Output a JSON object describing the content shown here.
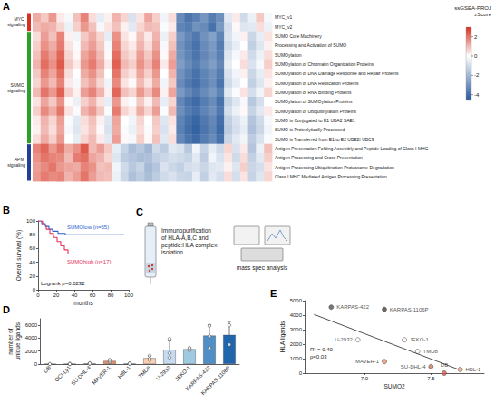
{
  "chart_data": [
    {
      "panel": "A",
      "type": "heatmap",
      "rows": [
        "MYC_v1",
        "MYC_v2",
        "SUMO Core Machinery",
        "Processing and Activation of SUMO",
        "SUMOylation",
        "SUMOylation of Chromatin Organization Proteins",
        "SUMOylation of DNA Damage Response and Repair Proteins",
        "SUMOylation of DNA Replication Proteins",
        "SUMOylation of RNA Binding Proteins",
        "SUMOylation of SUMOylation Proteins",
        "SUMOylation of Ubiquitinylation Proteins",
        "SUMO is Conjugated to E1 UBA2 SAE1",
        "SUMO is Proteolytically Processed",
        "SUMO is Transferred from E1 to E2 UBE2I UBC9",
        "Antigen Presentation Folding Assembly and Peptide Loading of Class I MHC",
        "Antigen Processing and Cross Presentation",
        "Antigen Processing Ubiquitination Proteasome Degradation",
        "Class I MHC Mediated Antigen Processing Presentation"
      ],
      "groups": [
        {
          "label": "MYC signaling",
          "color": "#d7301f",
          "rows": 2
        },
        {
          "label": "SUMO signaling",
          "color": "#2ca02c",
          "rows": 12
        },
        {
          "label": "APM signaling",
          "color": "#1f3f99",
          "rows": 4
        }
      ],
      "cells": [
        [
          1.2,
          0.8,
          1.5,
          0.3,
          -0.2,
          0.9,
          1.8,
          0.5,
          -0.5,
          0.2,
          1.1,
          0.6,
          -0.8,
          0.4,
          1.3,
          0.7,
          -0.3,
          0.5,
          -3.2,
          -3.8,
          -3.5,
          -2.9,
          -3.6,
          -3.1,
          -0.6,
          0.3,
          -1.0,
          -0.4,
          0.8,
          -0.2
        ],
        [
          1.0,
          1.2,
          1.1,
          0.6,
          -0.4,
          0.7,
          1.5,
          0.9,
          -0.2,
          0.4,
          0.9,
          0.2,
          -0.6,
          0.6,
          1.0,
          0.9,
          -0.1,
          0.3,
          -3.4,
          -3.6,
          -3.0,
          -3.2,
          -3.9,
          -2.8,
          -0.9,
          0.1,
          -0.7,
          -0.6,
          0.5,
          -0.4
        ],
        [
          0.5,
          1.4,
          0.9,
          1.8,
          0.2,
          -0.3,
          0.8,
          1.2,
          0.6,
          -0.5,
          1.6,
          0.4,
          0.1,
          0.9,
          0.3,
          1.1,
          -0.4,
          0.7,
          -2.8,
          -3.3,
          -3.7,
          -3.0,
          -2.6,
          -3.4,
          -0.8,
          -0.3,
          0.2,
          -1.1,
          -0.5,
          0.4
        ],
        [
          0.7,
          1.6,
          1.2,
          1.9,
          0.4,
          -0.1,
          1.0,
          1.4,
          0.8,
          -0.2,
          1.8,
          0.6,
          0.3,
          1.1,
          0.5,
          1.3,
          -0.2,
          0.9,
          -3.0,
          -3.5,
          -3.9,
          -3.2,
          -2.8,
          -3.6,
          -1.0,
          -0.5,
          0.0,
          -1.3,
          -0.7,
          0.2
        ],
        [
          0.9,
          1.9,
          1.4,
          2.2,
          0.6,
          0.1,
          1.3,
          1.7,
          1.0,
          0.1,
          2.1,
          0.8,
          0.5,
          1.4,
          0.8,
          1.6,
          0.1,
          1.2,
          -2.9,
          -3.4,
          -3.8,
          -3.3,
          -2.9,
          -3.5,
          -0.7,
          -0.2,
          0.3,
          -1.0,
          -0.4,
          0.5
        ],
        [
          1.1,
          2.1,
          1.6,
          2.4,
          0.8,
          0.3,
          1.5,
          1.9,
          1.2,
          0.3,
          2.3,
          1.0,
          0.7,
          1.6,
          1.0,
          1.8,
          0.3,
          1.4,
          -2.7,
          -3.2,
          -3.6,
          -3.1,
          -2.7,
          -3.3,
          -0.5,
          0.0,
          0.5,
          -0.8,
          -0.2,
          0.7
        ],
        [
          0.8,
          1.8,
          1.3,
          2.1,
          0.5,
          0.0,
          1.2,
          1.6,
          0.9,
          0.0,
          2.0,
          0.7,
          0.4,
          1.3,
          0.7,
          1.5,
          0.0,
          1.1,
          -3.0,
          -3.5,
          -3.9,
          -3.4,
          -3.0,
          -3.6,
          -0.8,
          -0.3,
          0.2,
          -1.1,
          -0.5,
          0.4
        ],
        [
          0.6,
          1.5,
          1.0,
          1.8,
          0.3,
          -0.2,
          0.9,
          1.3,
          0.6,
          -0.3,
          1.7,
          0.4,
          0.1,
          1.0,
          0.4,
          1.2,
          -0.3,
          0.8,
          -3.2,
          -3.7,
          -4.0,
          -3.5,
          -3.1,
          -3.8,
          -1.0,
          -0.5,
          0.0,
          -1.3,
          -0.7,
          0.2
        ],
        [
          1.0,
          2.0,
          1.5,
          2.3,
          0.7,
          0.2,
          1.4,
          1.8,
          1.1,
          0.2,
          2.2,
          0.9,
          0.6,
          1.5,
          0.9,
          1.7,
          0.2,
          1.3,
          -2.8,
          -3.3,
          -3.7,
          -3.2,
          -2.8,
          -3.4,
          -0.6,
          -0.1,
          0.4,
          -0.9,
          -0.3,
          0.6
        ],
        [
          0.4,
          1.3,
          0.8,
          1.6,
          0.1,
          -0.4,
          0.7,
          1.1,
          0.4,
          -0.5,
          1.5,
          0.2,
          -0.1,
          0.8,
          0.2,
          1.0,
          -0.5,
          0.6,
          -3.3,
          -3.8,
          -4.1,
          -3.6,
          -3.2,
          -3.9,
          -1.2,
          -0.7,
          -0.2,
          -1.5,
          -0.9,
          0.0
        ],
        [
          0.7,
          1.7,
          1.2,
          2.0,
          0.4,
          -0.1,
          1.1,
          1.5,
          0.8,
          -0.1,
          1.9,
          0.6,
          0.3,
          1.2,
          0.6,
          1.4,
          -0.1,
          1.0,
          -3.1,
          -3.6,
          -3.9,
          -3.4,
          -3.0,
          -3.7,
          -0.9,
          -0.4,
          0.1,
          -1.2,
          -0.6,
          0.3
        ],
        [
          0.3,
          1.1,
          0.6,
          1.4,
          -0.1,
          -0.6,
          0.5,
          0.9,
          0.2,
          -0.7,
          1.3,
          0.0,
          -0.3,
          0.6,
          0.0,
          0.8,
          -0.7,
          0.4,
          -3.4,
          -3.9,
          -4.2,
          -3.7,
          -3.3,
          -4.0,
          -1.3,
          -0.8,
          -0.4,
          -1.6,
          -1.0,
          -0.2
        ],
        [
          0.2,
          1.0,
          0.5,
          1.3,
          -0.2,
          -0.7,
          0.4,
          0.8,
          0.1,
          -0.8,
          1.2,
          -0.1,
          -0.4,
          0.5,
          -0.1,
          0.7,
          -0.8,
          0.3,
          -3.5,
          -4.0,
          -4.3,
          -3.8,
          -3.4,
          -4.1,
          -1.4,
          -0.9,
          -0.5,
          -1.7,
          -1.1,
          -0.3
        ],
        [
          0.5,
          1.2,
          0.7,
          1.5,
          0.0,
          -0.5,
          0.6,
          1.0,
          0.3,
          -0.6,
          1.4,
          0.1,
          -0.2,
          0.7,
          0.1,
          0.9,
          -0.6,
          0.5,
          -3.3,
          -3.8,
          -4.1,
          -3.6,
          -3.2,
          -3.9,
          -1.1,
          -0.6,
          -0.3,
          -1.4,
          -0.8,
          -0.1
        ],
        [
          1.8,
          2.2,
          1.5,
          2.0,
          1.2,
          1.6,
          2.4,
          1.0,
          1.4,
          0.8,
          -0.5,
          -1.2,
          -1.8,
          -1.5,
          -2.0,
          -1.0,
          -1.4,
          -0.6,
          -0.8,
          -1.5,
          -0.3,
          -1.2,
          -0.5,
          -1.0,
          0.6,
          -0.8,
          0.3,
          -1.6,
          -0.4,
          0.9
        ],
        [
          1.6,
          2.0,
          1.8,
          1.7,
          1.0,
          1.9,
          2.1,
          1.3,
          1.1,
          0.6,
          -0.7,
          -1.4,
          -1.6,
          -1.8,
          -1.7,
          -1.3,
          -1.1,
          -0.9,
          -1.0,
          -1.2,
          -0.6,
          -1.4,
          -0.3,
          -0.8,
          0.4,
          -1.0,
          0.5,
          -1.3,
          -0.6,
          0.7
        ],
        [
          1.4,
          1.7,
          2.0,
          1.5,
          1.3,
          1.2,
          1.8,
          1.6,
          0.9,
          1.0,
          -0.3,
          -1.0,
          -1.5,
          -1.2,
          -1.9,
          -1.6,
          -0.8,
          -1.1,
          -1.3,
          -0.9,
          -0.8,
          -1.1,
          -0.7,
          -0.6,
          0.2,
          -0.7,
          0.7,
          -1.1,
          -0.9,
          0.4
        ],
        [
          1.5,
          1.9,
          1.7,
          1.8,
          1.1,
          1.4,
          2.0,
          1.4,
          1.0,
          0.9,
          -0.4,
          -1.1,
          -1.7,
          -1.4,
          -1.8,
          -1.4,
          -1.0,
          -0.8,
          -1.1,
          -1.2,
          -0.5,
          -1.3,
          -0.6,
          -0.9,
          0.5,
          -0.9,
          0.4,
          -1.2,
          -0.7,
          0.6
        ]
      ],
      "colorbar": {
        "title": "ssGSEA-PROJ zScore",
        "range": [
          -4.5,
          3
        ],
        "ticks": [
          2,
          0,
          -2,
          -4
        ],
        "colors": [
          "#2b5c9e",
          "#ffffff",
          "#d7301f"
        ]
      }
    },
    {
      "panel": "B",
      "type": "line",
      "line_style": "step",
      "xlabel": "months",
      "ylabel": "Overall survival (%)",
      "xlim": [
        0,
        100
      ],
      "xticks": [
        0,
        20,
        40,
        60,
        80,
        100
      ],
      "ylim": [
        0,
        100
      ],
      "yticks": [
        0,
        20,
        40,
        60,
        80,
        100
      ],
      "annotation": "Logrank p=0.0232",
      "series": [
        {
          "name": "SUMOlow (n=55)",
          "color": "#2f5fd0",
          "x": [
            0,
            4,
            8,
            12,
            16,
            22,
            30,
            95
          ],
          "values": [
            100,
            96,
            92,
            88,
            85,
            82,
            80,
            80
          ]
        },
        {
          "name": "SUMOhigh (n=17)",
          "color": "#e8335a",
          "x": [
            0,
            5,
            9,
            13,
            17,
            21,
            25,
            29,
            33,
            90
          ],
          "values": [
            100,
            94,
            88,
            82,
            76,
            70,
            64,
            58,
            52,
            52
          ]
        }
      ]
    },
    {
      "panel": "D",
      "type": "bar",
      "ylabel": "number of unique ligands",
      "categories": [
        "DB",
        "OCI-Ly1",
        "SU-DHL-4",
        "MAVER-1",
        "HBL-1",
        "TMD8",
        "U-2932",
        "JEKO-1",
        "KARPAS-422",
        "KARPAS-1106P"
      ],
      "values": [
        0,
        10,
        80,
        480,
        60,
        920,
        2200,
        2300,
        4400,
        4500
      ],
      "errors": [
        0,
        8,
        60,
        180,
        35,
        350,
        1500,
        200,
        1700,
        2100
      ],
      "replicates": [
        [
          0,
          0
        ],
        [
          0,
          10,
          20,
          5
        ],
        [
          20,
          150,
          80
        ],
        [
          300,
          500,
          650
        ],
        [
          30,
          100,
          50
        ],
        [
          600,
          850,
          1300
        ],
        [
          1000,
          1700,
          3900
        ],
        [
          2100,
          2300,
          2500
        ],
        [
          2500,
          4300,
          5900
        ],
        [
          3000,
          6000
        ]
      ],
      "colors": [
        "#b2182b",
        "#d6604d",
        "#e07b4f",
        "#e8926a",
        "#f4a582",
        "#fbd0b0",
        "#c6dbef",
        "#9ecae1",
        "#4f8fc6",
        "#2166ac"
      ],
      "ylim": [
        0,
        7000
      ],
      "yticks": [
        0,
        2000,
        4000,
        6000
      ]
    },
    {
      "panel": "E",
      "type": "scatter",
      "xlabel": "SUMO2",
      "ylabel": "HLA ligands",
      "point_labels": [
        "KARPAS-422",
        "KARPAS-1106P",
        "U-2932",
        "JEKO-1",
        "TMD8",
        "MAVER-1",
        "SU-DHL-4",
        "HBL-1",
        "DB"
      ],
      "x": [
        6.75,
        7.15,
        6.95,
        7.3,
        7.4,
        7.15,
        7.5,
        7.72,
        7.6
      ],
      "values": [
        4550,
        4400,
        2300,
        2300,
        1500,
        800,
        450,
        250,
        0
      ],
      "colors": [
        "#555555",
        "#444444",
        "#ffffff",
        "#ffffff",
        "#ffffff",
        "#e8926a",
        "#c97a5a",
        "#f4a582",
        "#d6604d"
      ],
      "fit": {
        "x": [
          6.62,
          7.7
        ],
        "values": [
          4050,
          280
        ]
      },
      "annotations": [
        "R² = 0.40",
        "p=0.03"
      ],
      "xlim": [
        6.55,
        7.9
      ],
      "xticks": [
        {
          "value": 7,
          "label": "7.0"
        },
        7.5
      ],
      "ylim": [
        0,
        5000
      ],
      "yticks": [
        0,
        1000,
        2000,
        3000,
        4000,
        5000
      ]
    }
  ],
  "diagram": {
    "panel": "C",
    "steps": [
      "Immunopurification of HLA-A,B,C and peptide:HLA complex isolation",
      "mass spec analysis"
    ]
  }
}
